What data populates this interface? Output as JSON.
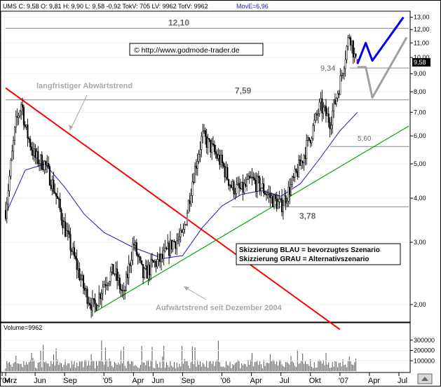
{
  "header": {
    "info_text": "UMS C: 9,58 O: 9,81 H: 9,90 L: 9,58 -0,92 TokV: 705 LV: 9962 TotV: 9962",
    "move_text": "MovE=6,96"
  },
  "watermark": "© http://www.godmode-trader.de",
  "legend_lines": [
    "Skizzierung BLAU = bevorzugtes Szenario",
    "Skizzierung GRAU = Alternativszenario"
  ],
  "annotations": {
    "long_trend": "langfristiger Abwärtstrend",
    "up_trend": "Aufwärtstrend seit Dezember 2004"
  },
  "colors": {
    "price": "#000000",
    "moving_average": "#1a1acc",
    "downtrend": "#ff0000",
    "uptrend": "#00aa00",
    "scenario_blue": "#0000ee",
    "scenario_gray": "#a0a0a0",
    "volume": "#555555"
  },
  "chart_data": [
    {
      "type": "line",
      "scale": "log",
      "ylim": [
        1.8,
        13.4
      ],
      "xlim": [
        "2004-03",
        "2007-08"
      ],
      "y_ticks": [
        {
          "value": 2,
          "label": "2,00"
        },
        {
          "value": 3,
          "label": "3,00"
        },
        {
          "value": 4,
          "label": "4,00"
        },
        {
          "value": 5,
          "label": "5,00"
        },
        {
          "value": 6,
          "label": "6,00"
        },
        {
          "value": 7,
          "label": "7,00"
        },
        {
          "value": 8,
          "label": "8,00"
        },
        {
          "value": 9,
          "label": "9,00"
        },
        {
          "value": 10,
          "label": "10,00"
        },
        {
          "value": 11,
          "label": "11,00"
        },
        {
          "value": 12,
          "label": "12,00"
        },
        {
          "value": 13,
          "label": "13,00"
        }
      ],
      "x_ticks": [
        {
          "label": "'04",
          "date": "2004-01"
        },
        {
          "label": "Mrz",
          "date": "2004-03"
        },
        {
          "label": "Jun",
          "date": "2004-06"
        },
        {
          "label": "Sep",
          "date": "2004-09"
        },
        {
          "label": "'05",
          "date": "2005-01"
        },
        {
          "label": "Apr",
          "date": "2005-04"
        },
        {
          "label": "Jun",
          "date": "2005-06"
        },
        {
          "label": "Sep",
          "date": "2005-09"
        },
        {
          "label": "'06",
          "date": "2006-01"
        },
        {
          "label": "Apr",
          "date": "2006-04"
        },
        {
          "label": "Jul",
          "date": "2006-07"
        },
        {
          "label": "Okt",
          "date": "2006-10"
        },
        {
          "label": "'07",
          "date": "2007-01"
        },
        {
          "label": "Apr",
          "date": "2007-04"
        },
        {
          "label": "Jul",
          "date": "2007-07"
        }
      ],
      "current_price": {
        "value": 9.58,
        "label": "9,58"
      },
      "horizontal_levels": [
        {
          "value": 12.1,
          "label": "12,10",
          "start": "2004-03"
        },
        {
          "value": 9.34,
          "label": "9,34",
          "start": "2007-02"
        },
        {
          "value": 7.59,
          "label": "7,59",
          "start": "2004-03"
        },
        {
          "value": 5.6,
          "label": "5,60",
          "start": "2006-12"
        },
        {
          "value": 3.78,
          "label": "3,78",
          "start": "2006-02"
        }
      ],
      "price_series": {
        "name": "",
        "points": [
          [
            "2004-03",
            3.7
          ],
          [
            "2004-04",
            6.4
          ],
          [
            "2004-04-20",
            7.5
          ],
          [
            "2004-05",
            6.3
          ],
          [
            "2004-06",
            5.2
          ],
          [
            "2004-07",
            5.0
          ],
          [
            "2004-08",
            4.2
          ],
          [
            "2004-09",
            3.3
          ],
          [
            "2004-10",
            2.7
          ],
          [
            "2004-11",
            2.2
          ],
          [
            "2004-12",
            1.95
          ],
          [
            "2005-01",
            2.3
          ],
          [
            "2005-02",
            2.5
          ],
          [
            "2005-03",
            2.1
          ],
          [
            "2005-04",
            3.0
          ],
          [
            "2005-05",
            2.4
          ],
          [
            "2005-06",
            2.6
          ],
          [
            "2005-07",
            2.7
          ],
          [
            "2005-08",
            3.0
          ],
          [
            "2005-09",
            3.1
          ],
          [
            "2005-10",
            4.5
          ],
          [
            "2005-11",
            6.0
          ],
          [
            "2005-12",
            5.5
          ],
          [
            "2006-01",
            5.0
          ],
          [
            "2006-02",
            4.3
          ],
          [
            "2006-03",
            4.2
          ],
          [
            "2006-04",
            4.5
          ],
          [
            "2006-05",
            4.3
          ],
          [
            "2006-06",
            4.0
          ],
          [
            "2006-07",
            3.8
          ],
          [
            "2006-08",
            4.3
          ],
          [
            "2006-09",
            5.0
          ],
          [
            "2006-10",
            6.0
          ],
          [
            "2006-11",
            7.3
          ],
          [
            "2006-12",
            6.6
          ],
          [
            "2007-01",
            8.5
          ],
          [
            "2007-02",
            11.8
          ],
          [
            "2007-02-20",
            9.58
          ]
        ]
      },
      "moving_average": {
        "name": "",
        "points": [
          [
            "2004-03",
            3.6
          ],
          [
            "2004-05",
            4.8
          ],
          [
            "2004-07",
            5.0
          ],
          [
            "2004-09",
            4.3
          ],
          [
            "2004-11",
            3.6
          ],
          [
            "2005-01",
            3.2
          ],
          [
            "2005-04",
            2.9
          ],
          [
            "2005-07",
            2.7
          ],
          [
            "2005-09",
            2.75
          ],
          [
            "2005-11",
            3.3
          ],
          [
            "2006-01",
            3.8
          ],
          [
            "2006-03",
            4.1
          ],
          [
            "2006-05",
            4.2
          ],
          [
            "2006-07",
            4.05
          ],
          [
            "2006-09",
            4.4
          ],
          [
            "2006-11",
            5.2
          ],
          [
            "2007-01",
            6.2
          ],
          [
            "2007-02-25",
            7.0
          ]
        ]
      },
      "trendlines": [
        {
          "name": "downtrend",
          "points": [
            [
              "2004-03",
              8.2
            ],
            [
              "2007-01",
              1.7
            ]
          ]
        },
        {
          "name": "uptrend",
          "points": [
            [
              "2004-12",
              1.9
            ],
            [
              "2007-08",
              6.4
            ]
          ]
        }
      ],
      "scenarios": [
        {
          "name": "blue",
          "points": [
            [
              "2007-02-25",
              9.6
            ],
            [
              "2007-03-20",
              11.0
            ],
            [
              "2007-04-10",
              9.8
            ],
            [
              "2007-07-15",
              13.0
            ]
          ]
        },
        {
          "name": "gray",
          "points": [
            [
              "2007-02-25",
              9.4
            ],
            [
              "2007-03-20",
              9.4
            ],
            [
              "2007-04-10",
              7.7
            ],
            [
              "2007-07-25",
              11.4
            ]
          ]
        }
      ]
    },
    {
      "type": "bar",
      "title": "Volume=9962",
      "y_ticks": [
        {
          "value": 100000,
          "label": "100000"
        },
        {
          "value": 200000,
          "label": "200000"
        },
        {
          "value": 300000,
          "label": "300000"
        }
      ],
      "ylim": [
        0,
        380000
      ]
    }
  ]
}
